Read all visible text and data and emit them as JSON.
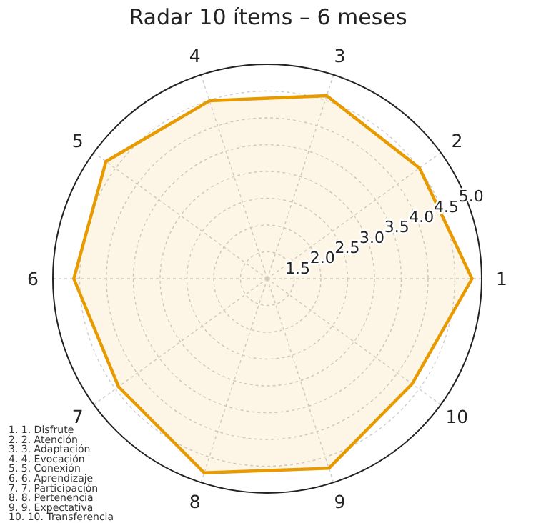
{
  "chart_data": {
    "type": "radar",
    "title": "Radar 10 ítems – 6 meses",
    "categories": [
      "3",
      "2",
      "1",
      "10",
      "9",
      "8",
      "7",
      "6",
      "5",
      "4"
    ],
    "series": [
      {
        "color": "#e89b00",
        "values": [
          4.59,
          4.51,
          4.82,
          4.34,
          4.72,
          4.81,
          4.43,
          4.61,
          4.72,
          4.49
        ]
      }
    ],
    "ylim": [
      1,
      5
    ],
    "yticks": [
      1.5,
      {
        "value": 2,
        "label": "2.0"
      },
      2.5,
      {
        "value": 3,
        "label": "3.0"
      },
      3.5,
      {
        "value": 4,
        "label": "4.0"
      },
      4.5,
      {
        "value": 5,
        "label": "5.0"
      }
    ],
    "grid": true,
    "annotations": [
      "1. 1. Disfrute",
      "2. 2. Atención",
      "3. 3. Adaptación",
      "4. 4. Evocación",
      "5. 5. Conexión",
      "6. 6. Aprendizaje",
      "7. 7. Participación",
      "8. 8. Pertenencia",
      "9. 9. Expectativa",
      "10. 10. Transferencia"
    ]
  }
}
